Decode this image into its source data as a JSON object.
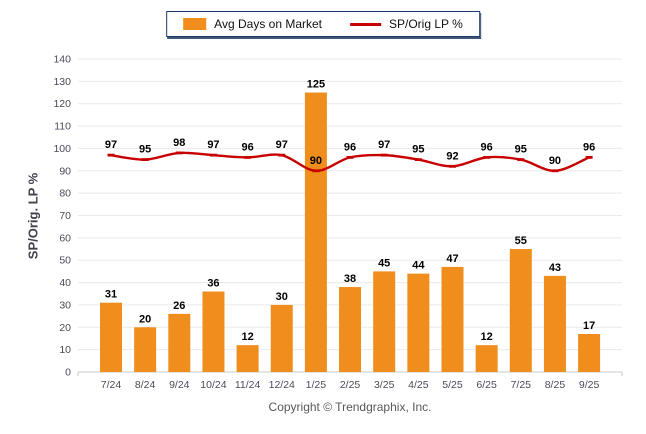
{
  "legend": {
    "border_color": "#1F3864"
  },
  "y_axis": {
    "title": "SP/Orig. LP %"
  },
  "footer": {
    "copyright": "Copyright © Trendgraphix, Inc."
  },
  "colors": {
    "bar": "#EF8E1C",
    "line": "#C80000",
    "grid": "#ECEAEC",
    "axis": "#C8C8C8",
    "tick_text": "#4A4A5C",
    "data_label_text": "#000000"
  },
  "chart_data": {
    "type": "bar+line",
    "title": "",
    "xlabel": "",
    "ylabel": "SP/Orig. LP %",
    "ylim": [
      0,
      140
    ],
    "yticks": [
      0,
      10,
      20,
      30,
      40,
      50,
      60,
      70,
      80,
      90,
      100,
      110,
      120,
      130,
      140
    ],
    "grid": true,
    "legend_position": "top-center",
    "categories": [
      "7/24",
      "8/24",
      "9/24",
      "10/24",
      "11/24",
      "12/24",
      "1/25",
      "2/25",
      "3/25",
      "4/25",
      "5/25",
      "6/25",
      "7/25",
      "8/25",
      "9/25"
    ],
    "series": [
      {
        "name": "Avg Days on Market",
        "type": "bar",
        "color": "#EF8E1C",
        "values": [
          31,
          20,
          26,
          36,
          12,
          30,
          125,
          38,
          45,
          44,
          47,
          12,
          55,
          43,
          17
        ]
      },
      {
        "name": "SP/Orig LP %",
        "type": "line",
        "color": "#C80000",
        "values": [
          97,
          95,
          98,
          97,
          96,
          97,
          90,
          96,
          97,
          95,
          92,
          96,
          95,
          90,
          96
        ]
      }
    ]
  }
}
